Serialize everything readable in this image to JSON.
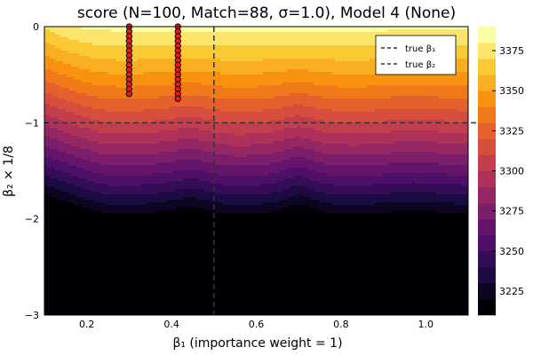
{
  "chart_data": {
    "type": "contour",
    "title": "score (N=100, Match=88, σ=1.0), Model 4 (None)",
    "xlabel": "β₁ (importance weight = 1)",
    "ylabel": "β₂ × 1/8",
    "xlim": [
      0.1,
      1.1
    ],
    "ylim": [
      -3.0,
      0.0
    ],
    "x_ticks": [
      0.2,
      0.4,
      0.6,
      0.8,
      1.0
    ],
    "x_tick_labels": [
      "0.2",
      "0.4",
      "0.6",
      "0.8",
      "1.0"
    ],
    "y_ticks": [
      0,
      -1,
      -2,
      -3
    ],
    "y_tick_labels": [
      "0",
      "−1",
      "−2",
      "−3"
    ],
    "colorbar": {
      "min": 3210,
      "max": 3390,
      "ticks": [
        3225,
        3250,
        3275,
        3300,
        3325,
        3350,
        3375
      ],
      "tick_labels": [
        "3225",
        "3250",
        "3275",
        "3300",
        "3325",
        "3350",
        "3375"
      ],
      "levels": [
        3210,
        3220,
        3230,
        3240,
        3250,
        3260,
        3270,
        3280,
        3290,
        3300,
        3310,
        3320,
        3330,
        3340,
        3350,
        3360,
        3370,
        3380,
        3390
      ],
      "colormap": "inferno"
    },
    "reference_lines": [
      {
        "name": "true β₁",
        "orientation": "vertical",
        "value": 0.5,
        "style": "dashed",
        "color": "#333333"
      },
      {
        "name": "true β₂",
        "orientation": "horizontal",
        "value": -1.0,
        "style": "dashed",
        "color": "#333333"
      }
    ],
    "legend": {
      "position": "top-right",
      "entries": [
        "true β₁",
        "true β₂"
      ]
    },
    "grid": true,
    "points": {
      "color": "#e41a1c",
      "series": [
        {
          "x": 0.3,
          "y": [
            0.0,
            -0.05,
            -0.1,
            -0.15,
            -0.2,
            -0.25,
            -0.3,
            -0.35,
            -0.4,
            -0.45,
            -0.5,
            -0.55,
            -0.6,
            -0.65,
            -0.7
          ]
        },
        {
          "x": 0.415,
          "y": [
            0.0,
            -0.05,
            -0.1,
            -0.15,
            -0.2,
            -0.25,
            -0.3,
            -0.35,
            -0.4,
            -0.45,
            -0.5,
            -0.55,
            -0.6,
            -0.65,
            -0.7,
            -0.75
          ]
        }
      ]
    }
  }
}
